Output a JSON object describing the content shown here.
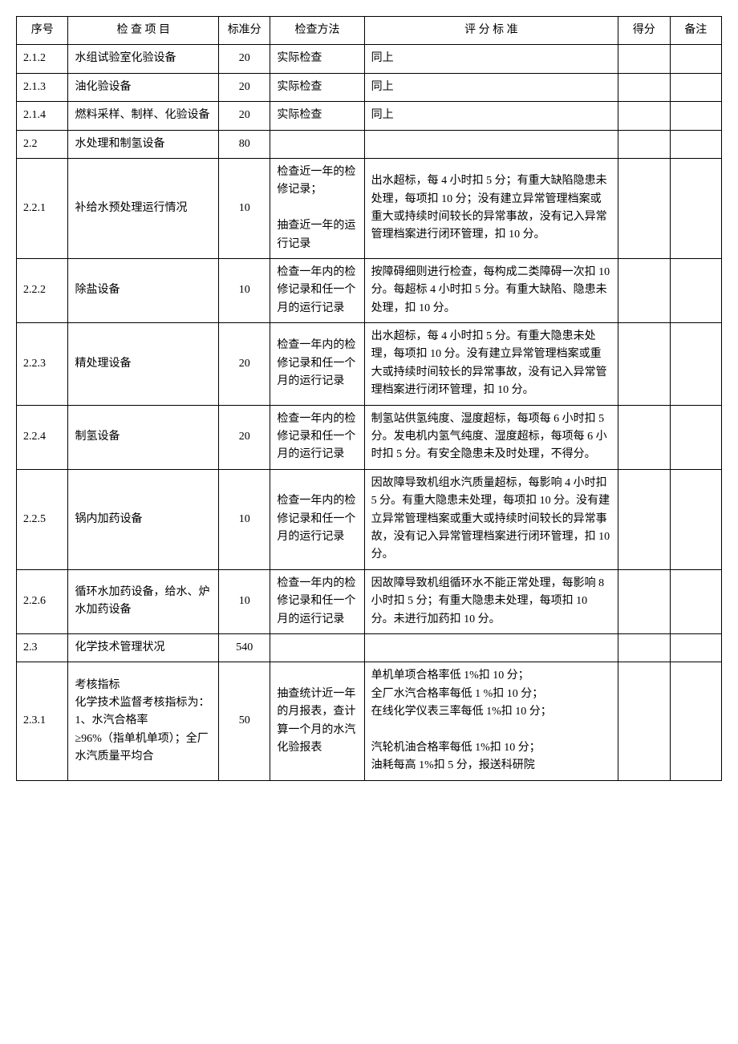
{
  "headers": {
    "seq": "序号",
    "item": "检  查  项  目",
    "score": "标准分",
    "method": "检查方法",
    "criteria": "评  分  标  准",
    "got": "得分",
    "note": "备注"
  },
  "rows": [
    {
      "seq": "2.1.2",
      "item": "水组试验室化验设备",
      "score": "20",
      "method": "实际检查",
      "criteria": "同上"
    },
    {
      "seq": "2.1.3",
      "item": "油化验设备",
      "score": "20",
      "method": "实际检查",
      "criteria": "同上"
    },
    {
      "seq": "2.1.4",
      "item": "燃料采样、制样、化验设备",
      "score": "20",
      "method": "实际检查",
      "criteria": "同上"
    },
    {
      "seq": "2.2",
      "item": "水处理和制氢设备",
      "score": "80",
      "method": "",
      "criteria": ""
    },
    {
      "seq": "2.2.1",
      "item": "补给水预处理运行情况",
      "score": "10",
      "method": "检查近一年的检修记录；\n\n抽查近一年的运行记录",
      "criteria": "出水超标，每 4 小时扣 5 分；有重大缺陷隐患未处理，每项扣 10 分；没有建立异常管理档案或重大或持续时间较长的异常事故，没有记入异常管理档案进行闭环管理，扣 10 分。"
    },
    {
      "seq": "2.2.2",
      "item": "除盐设备",
      "score": "10",
      "method": "检查一年内的检修记录和任一个月的运行记录",
      "criteria": "按障碍细则进行检查，每构成二类障碍一次扣 10 分。每超标 4 小时扣 5 分。有重大缺陷、隐患未处理，扣 10 分。"
    },
    {
      "seq": "2.2.3",
      "item": "精处理设备",
      "score": "20",
      "method": "检查一年内的检修记录和任一个月的运行记录",
      "criteria": "出水超标，每 4 小时扣 5 分。有重大隐患未处理，每项扣 10 分。没有建立异常管理档案或重大或持续时间较长的异常事故，没有记入异常管理档案进行闭环管理，扣 10 分。"
    },
    {
      "seq": "2.2.4",
      "item": "制氢设备",
      "score": "20",
      "method": "检查一年内的检修记录和任一个月的运行记录",
      "criteria": "制氢站供氢纯度、湿度超标，每项每 6 小时扣 5 分。发电机内氢气纯度、湿度超标，每项每 6 小时扣 5 分。有安全隐患未及时处理，不得分。"
    },
    {
      "seq": "2.2.5",
      "item": "锅内加药设备",
      "score": "10",
      "method": "检查一年内的检修记录和任一个月的运行记录",
      "criteria": "因故障导致机组水汽质量超标，每影响 4 小时扣 5 分。有重大隐患未处理，每项扣 10 分。没有建立异常管理档案或重大或持续时间较长的异常事故，没有记入异常管理档案进行闭环管理，扣 10 分。"
    },
    {
      "seq": "2.2.6",
      "item": "循环水加药设备，给水、炉水加药设备",
      "score": "10",
      "method": "检查一年内的检修记录和任一个月的运行记录",
      "criteria": "因故障导致机组循环水不能正常处理，每影响 8 小时扣 5 分；有重大隐患未处理，每项扣 10 分。未进行加药扣 10 分。"
    },
    {
      "seq": "2.3",
      "item": "化学技术管理状况",
      "score": "540",
      "method": "",
      "criteria": ""
    },
    {
      "seq": "2.3.1",
      "item": "考核指标\n化学技术监督考核指标为：\n1、水汽合格率\n≥96%（指单机单项）；全厂水汽质量平均合",
      "score": "50",
      "method": "抽查统计近一年的月报表，查计算一个月的水汽化验报表",
      "criteria": "单机单项合格率低 1%扣 10 分；\n全厂水汽合格率每低 1 %扣 10 分；\n在线化学仪表三率每低 1%扣 10 分；\n\n汽轮机油合格率每低 1%扣 10 分；\n油耗每高 1%扣 5 分，报送科研院"
    }
  ]
}
